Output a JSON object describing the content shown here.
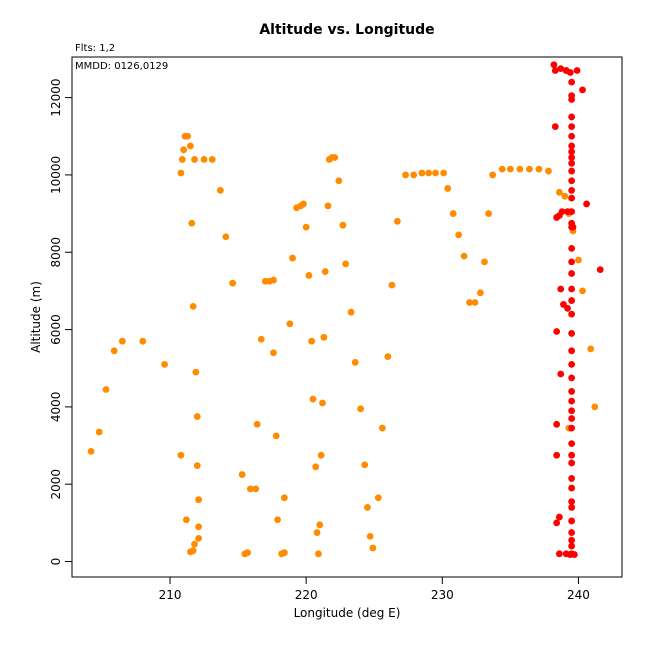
{
  "chart_data": {
    "type": "scatter",
    "title": "Altitude vs. Longitude",
    "xlabel": "Longitude (deg E)",
    "ylabel": "Altitude (m)",
    "flights_note": "Flts: 1,2",
    "dates_note": "MMDD: 0126,0129",
    "xlim": [
      202.8,
      243.2
    ],
    "ylim": [
      -400,
      13050
    ],
    "xticks": [
      210,
      220,
      230,
      240
    ],
    "yticks": [
      0,
      2000,
      4000,
      6000,
      8000,
      10000,
      12000
    ],
    "grid": false,
    "legend": "none",
    "series": [
      {
        "color": "#FF8C00",
        "points": [
          [
            204.2,
            2850
          ],
          [
            204.8,
            3350
          ],
          [
            205.3,
            4450
          ],
          [
            205.9,
            5450
          ],
          [
            206.5,
            5700
          ],
          [
            208.0,
            5700
          ],
          [
            209.6,
            5100
          ],
          [
            210.8,
            10050
          ],
          [
            210.9,
            10400
          ],
          [
            211.0,
            10650
          ],
          [
            211.1,
            11000
          ],
          [
            211.3,
            11000
          ],
          [
            211.5,
            10750
          ],
          [
            211.8,
            10400
          ],
          [
            212.5,
            10400
          ],
          [
            213.1,
            10400
          ],
          [
            211.6,
            8750
          ],
          [
            211.7,
            6600
          ],
          [
            211.9,
            4900
          ],
          [
            212.0,
            3750
          ],
          [
            212.0,
            2480
          ],
          [
            212.1,
            1600
          ],
          [
            212.1,
            900
          ],
          [
            212.1,
            600
          ],
          [
            211.8,
            450
          ],
          [
            211.7,
            280
          ],
          [
            211.5,
            250
          ],
          [
            211.2,
            1080
          ],
          [
            210.8,
            2750
          ],
          [
            213.7,
            9600
          ],
          [
            214.1,
            8400
          ],
          [
            214.6,
            7200
          ],
          [
            215.3,
            2250
          ],
          [
            215.5,
            200
          ],
          [
            215.7,
            230
          ],
          [
            215.9,
            1880
          ],
          [
            216.3,
            1880
          ],
          [
            216.4,
            3550
          ],
          [
            216.7,
            5750
          ],
          [
            217.0,
            7250
          ],
          [
            217.3,
            7250
          ],
          [
            217.6,
            7280
          ],
          [
            217.8,
            3250
          ],
          [
            217.6,
            5400
          ],
          [
            217.9,
            1080
          ],
          [
            218.2,
            200
          ],
          [
            218.4,
            230
          ],
          [
            218.4,
            1650
          ],
          [
            218.8,
            6150
          ],
          [
            219.0,
            7850
          ],
          [
            219.3,
            9150
          ],
          [
            219.6,
            9200
          ],
          [
            219.8,
            9250
          ],
          [
            220.0,
            8650
          ],
          [
            220.2,
            7400
          ],
          [
            220.4,
            5700
          ],
          [
            220.5,
            4200
          ],
          [
            220.7,
            2450
          ],
          [
            220.8,
            750
          ],
          [
            221.0,
            950
          ],
          [
            220.9,
            200
          ],
          [
            221.1,
            2750
          ],
          [
            221.2,
            4100
          ],
          [
            221.3,
            5800
          ],
          [
            221.4,
            7500
          ],
          [
            221.6,
            9200
          ],
          [
            221.7,
            10400
          ],
          [
            221.9,
            10450
          ],
          [
            222.1,
            10450
          ],
          [
            222.4,
            9850
          ],
          [
            222.7,
            8700
          ],
          [
            222.9,
            7700
          ],
          [
            223.3,
            6450
          ],
          [
            223.6,
            5150
          ],
          [
            224.0,
            3950
          ],
          [
            224.3,
            2500
          ],
          [
            224.5,
            1400
          ],
          [
            224.7,
            650
          ],
          [
            224.9,
            350
          ],
          [
            225.3,
            1650
          ],
          [
            225.6,
            3450
          ],
          [
            226.0,
            5300
          ],
          [
            226.3,
            7150
          ],
          [
            226.7,
            8800
          ],
          [
            227.3,
            10000
          ],
          [
            227.9,
            10000
          ],
          [
            228.5,
            10050
          ],
          [
            229.0,
            10050
          ],
          [
            229.5,
            10050
          ],
          [
            230.1,
            10050
          ],
          [
            230.4,
            9650
          ],
          [
            230.8,
            9000
          ],
          [
            231.2,
            8450
          ],
          [
            231.6,
            7900
          ],
          [
            232.0,
            6700
          ],
          [
            232.4,
            6700
          ],
          [
            232.8,
            6950
          ],
          [
            233.1,
            7750
          ],
          [
            233.4,
            9000
          ],
          [
            233.7,
            10000
          ],
          [
            234.4,
            10150
          ],
          [
            235.0,
            10150
          ],
          [
            235.7,
            10150
          ],
          [
            236.4,
            10150
          ],
          [
            237.1,
            10150
          ],
          [
            237.8,
            10100
          ],
          [
            238.6,
            9550
          ],
          [
            239.0,
            9450
          ],
          [
            239.3,
            9000
          ],
          [
            239.6,
            8550
          ],
          [
            239.3,
            3450
          ],
          [
            240.0,
            7800
          ],
          [
            240.3,
            7000
          ],
          [
            240.9,
            5500
          ],
          [
            241.2,
            4000
          ]
        ]
      },
      {
        "color": "#FF0000",
        "points": [
          [
            238.2,
            12850
          ],
          [
            238.3,
            12700
          ],
          [
            238.7,
            12750
          ],
          [
            239.1,
            12700
          ],
          [
            239.9,
            12700
          ],
          [
            240.3,
            12200
          ],
          [
            238.3,
            11250
          ],
          [
            239.5,
            12400
          ],
          [
            239.5,
            12050
          ],
          [
            239.5,
            11950
          ],
          [
            239.5,
            11500
          ],
          [
            239.5,
            11250
          ],
          [
            239.5,
            11000
          ],
          [
            239.5,
            10750
          ],
          [
            239.5,
            10600
          ],
          [
            239.5,
            10450
          ],
          [
            239.5,
            10300
          ],
          [
            239.5,
            10100
          ],
          [
            239.5,
            9850
          ],
          [
            239.5,
            9600
          ],
          [
            239.5,
            9400
          ],
          [
            239.5,
            9050
          ],
          [
            239.5,
            8750
          ],
          [
            239.5,
            8650
          ],
          [
            239.5,
            8100
          ],
          [
            239.5,
            7750
          ],
          [
            239.5,
            7450
          ],
          [
            239.5,
            7050
          ],
          [
            239.5,
            6750
          ],
          [
            239.5,
            6400
          ],
          [
            239.5,
            5900
          ],
          [
            239.5,
            5450
          ],
          [
            239.5,
            5100
          ],
          [
            239.5,
            4750
          ],
          [
            239.5,
            4400
          ],
          [
            239.5,
            4150
          ],
          [
            239.5,
            3900
          ],
          [
            239.5,
            3700
          ],
          [
            239.5,
            3450
          ],
          [
            239.5,
            3050
          ],
          [
            239.5,
            2750
          ],
          [
            239.5,
            2550
          ],
          [
            239.5,
            2150
          ],
          [
            239.5,
            1900
          ],
          [
            239.5,
            1550
          ],
          [
            239.5,
            1400
          ],
          [
            239.5,
            1050
          ],
          [
            239.5,
            750
          ],
          [
            239.5,
            550
          ],
          [
            239.5,
            400
          ],
          [
            239.5,
            200
          ],
          [
            239.4,
            180
          ],
          [
            239.7,
            180
          ],
          [
            239.1,
            200
          ],
          [
            238.6,
            200
          ],
          [
            238.4,
            1000
          ],
          [
            238.6,
            1150
          ],
          [
            238.4,
            2750
          ],
          [
            238.4,
            3550
          ],
          [
            238.7,
            4850
          ],
          [
            238.4,
            5950
          ],
          [
            238.7,
            7050
          ],
          [
            238.9,
            6650
          ],
          [
            239.2,
            6550
          ],
          [
            238.6,
            8950
          ],
          [
            238.4,
            8900
          ],
          [
            238.8,
            9050
          ],
          [
            239.2,
            9050
          ],
          [
            239.6,
            8650
          ],
          [
            240.6,
            9250
          ],
          [
            241.6,
            7550
          ],
          [
            239.1,
            12700
          ],
          [
            239.4,
            12650
          ]
        ]
      }
    ]
  }
}
